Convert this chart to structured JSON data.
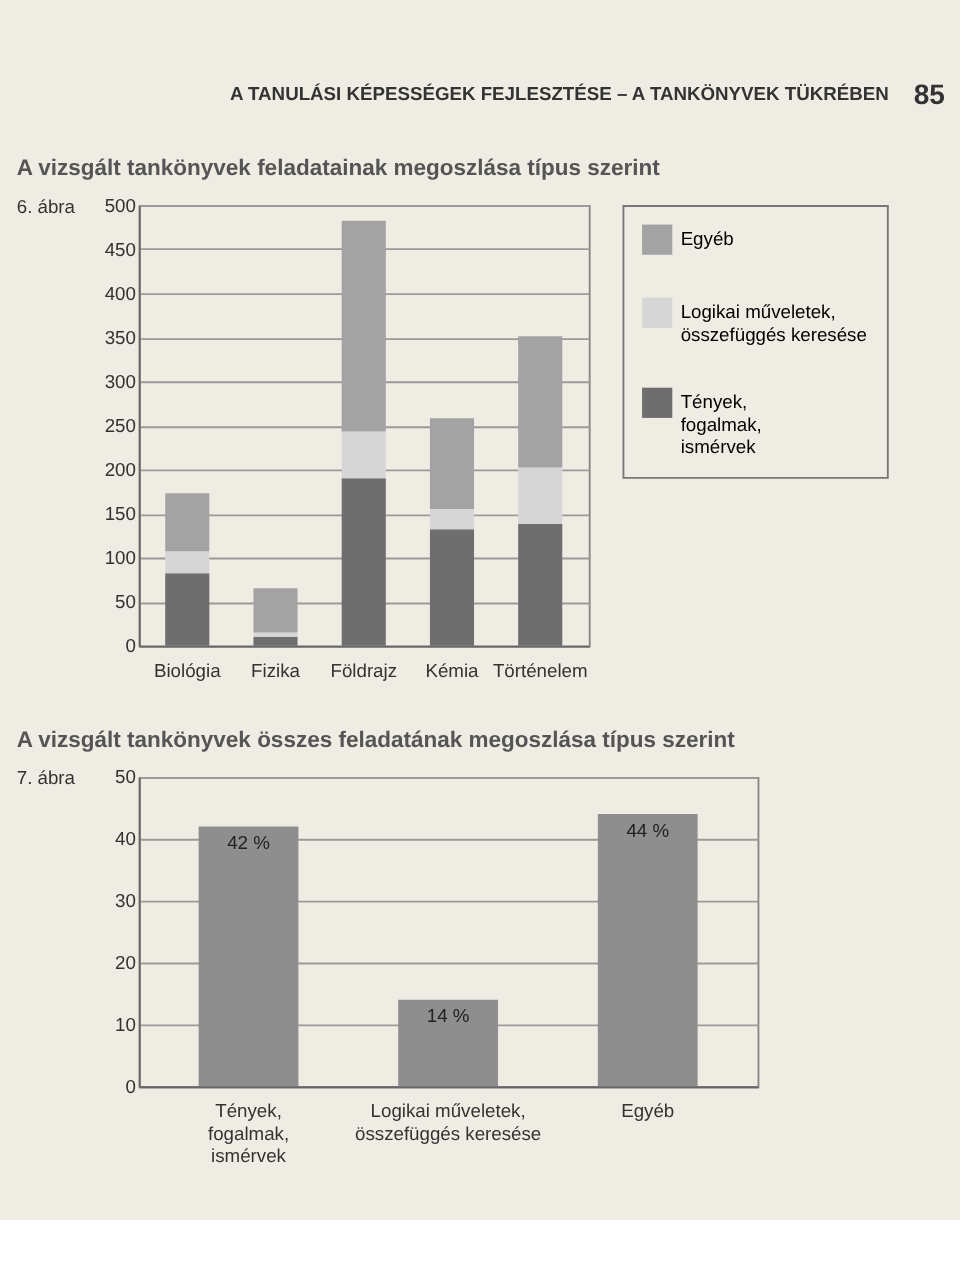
{
  "chart_data": [
    {
      "type": "bar",
      "stacked": true,
      "title": "A vizsgált tankönyvek feladatainak megoszlása típus szerint",
      "categories": [
        "Biológia",
        "Fizika",
        "Földrajz",
        "Kémia",
        "Történelem"
      ],
      "series": [
        {
          "name": "Tények, fogalmak, ismérvek",
          "color": "#6e6e6e",
          "values": [
            82,
            10,
            190,
            132,
            138
          ]
        },
        {
          "name": "Logikai műveletek, összefüggés keresése",
          "color": "#d6d6d6",
          "values": [
            25,
            5,
            53,
            23,
            64
          ]
        },
        {
          "name": "Egyéb",
          "color": "#a3a3a3",
          "values": [
            66,
            50,
            239,
            103,
            149
          ]
        }
      ],
      "ylim": [
        0,
        500
      ],
      "yticks": [
        0,
        50,
        100,
        150,
        200,
        250,
        300,
        350,
        400,
        450,
        500
      ],
      "grid": "y",
      "legend": "right",
      "annotations": [
        "A TANULÁSI KÉPESSÉGEK FEJLESZTÉSE – A TANKÖNYVEK TÜKRÉBEN",
        "85",
        "6. ábra"
      ]
    },
    {
      "type": "bar",
      "title": "A vizsgált tankönyvek összes feladatának megoszlása típus szerint",
      "categories": [
        "Tények, fogalmak, ismérvek",
        "Logikai műveletek, összefüggés keresése",
        "Egyéb"
      ],
      "values": [
        42,
        14,
        44
      ],
      "color": "#8e8e8e",
      "value_labels": [
        "42 %",
        "14 %",
        "44 %"
      ],
      "ylim": [
        0,
        50
      ],
      "yticks": [
        0,
        10,
        20,
        30,
        40,
        50
      ],
      "grid": "y",
      "annotations": [
        "7. ábra"
      ]
    }
  ]
}
